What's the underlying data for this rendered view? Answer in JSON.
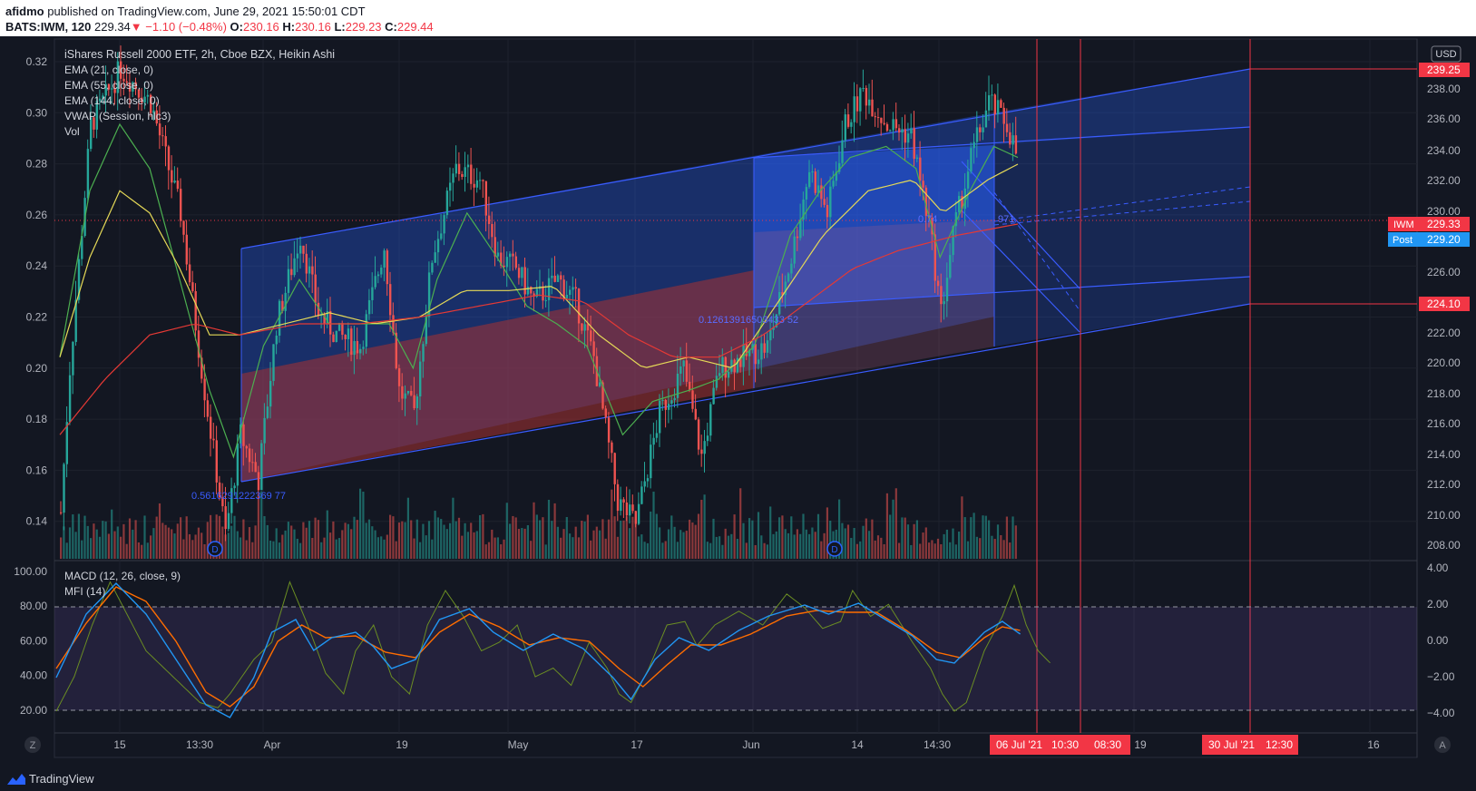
{
  "header": {
    "author": "afidmo",
    "published_text": " published on TradingView.com, June 29, 2021 15:50:01 CDT",
    "symbol": "BATS:IWM, 120",
    "last": "229.34",
    "change": "−1.10 (−0.48%)",
    "o_label": "O:",
    "o": "230.16",
    "h_label": "H:",
    "h": "230.16",
    "l_label": "L:",
    "l": "229.23",
    "c_label": "C:",
    "c": "229.44"
  },
  "legend": {
    "title": "iShares Russell 2000 ETF, 2h, Cboe BZX, Heikin Ashi",
    "ema21": "EMA (21, close, 0)",
    "ema55": "EMA (55, close, 0)",
    "ema144": "EMA (144, close, 0)",
    "vwap": "VWAP (Session, hlc3)",
    "vol": "Vol",
    "macd": "MACD (12, 26, close, 9)",
    "mfi": "MFI (14)"
  },
  "currency": "USD",
  "price_tags": {
    "top_line": "239.25",
    "iwm_label": "IWM",
    "iwm": "229.33",
    "post_label": "Post",
    "post": "229.20",
    "bottom_line": "224.10"
  },
  "fib_labels": {
    "a": "0.5616291222369 77",
    "b": "0.12613916503433 52",
    "c": "0.74",
    "c2": "971"
  },
  "dividend_marker": "D",
  "time_tags": {
    "t1": "06 Jul '21",
    "t2": "10:30",
    "t3": "08:30",
    "t4": "30 Jul '21",
    "t5": "12:30"
  },
  "corner": {
    "left": "Z",
    "right": "A"
  },
  "footer": {
    "brand": "TradingView"
  },
  "colors": {
    "bull": "#26a69a",
    "bear": "#ef5350",
    "channel": "#2962ff",
    "ema21": "#4caf50",
    "ema55": "#e5d957",
    "ema144": "#e53935",
    "macd": "#2196f3",
    "signal": "#ff6d00",
    "mfi": "#6b8e23",
    "vline": "#f23645"
  },
  "chart_data": {
    "type": "candlestick",
    "ylabel_right": "USD",
    "price_axis_ticks": [
      239.25,
      238.0,
      236.0,
      234.0,
      232.0,
      230.0,
      229.33,
      229.2,
      226.0,
      224.1,
      222.0,
      220.0,
      218.0,
      216.0,
      214.0,
      212.0,
      210.0,
      208.0
    ],
    "price_axis_labels": [
      "239.25",
      "238.00",
      "236.00",
      "234.00",
      "232.00",
      "230.00",
      "229.33",
      "229.20",
      "226.00",
      "224.10",
      "222.00",
      "220.00",
      "218.00",
      "216.00",
      "214.00",
      "212.00",
      "210.00",
      "208.00"
    ],
    "left_axis_labels": [
      "0.32",
      "0.30",
      "0.28",
      "0.26",
      "0.24",
      "0.22",
      "0.20",
      "0.18",
      "0.16",
      "0.14"
    ],
    "ylim_price": [
      206.9,
      241.4
    ],
    "x_tick_labels": [
      "15",
      "13:30",
      "Apr",
      "19",
      "May",
      "17",
      "Jun",
      "14",
      "14:30",
      "19",
      "16"
    ],
    "price_path_keypoints": [
      [
        0,
        213.5
      ],
      [
        3,
        220
      ],
      [
        10,
        231
      ],
      [
        20,
        233.5
      ],
      [
        30,
        232
      ],
      [
        40,
        227
      ],
      [
        48,
        219
      ],
      [
        55,
        212.5
      ],
      [
        60,
        217
      ],
      [
        66,
        215
      ],
      [
        72,
        222
      ],
      [
        80,
        226
      ],
      [
        86,
        222.5
      ],
      [
        92,
        221.5
      ],
      [
        100,
        221
      ],
      [
        108,
        225.5
      ],
      [
        113,
        219
      ],
      [
        118,
        218
      ],
      [
        124,
        225
      ],
      [
        132,
        229
      ],
      [
        140,
        228.5
      ],
      [
        146,
        225
      ],
      [
        152,
        224.5
      ],
      [
        158,
        223
      ],
      [
        166,
        224
      ],
      [
        172,
        223
      ],
      [
        178,
        220.5
      ],
      [
        186,
        214
      ],
      [
        192,
        213
      ],
      [
        200,
        218
      ],
      [
        208,
        220
      ],
      [
        214,
        216
      ],
      [
        220,
        220
      ],
      [
        228,
        220.5
      ],
      [
        236,
        221
      ],
      [
        244,
        225
      ],
      [
        250,
        229
      ],
      [
        256,
        227
      ],
      [
        262,
        231
      ],
      [
        268,
        232.5
      ],
      [
        276,
        231
      ],
      [
        284,
        230.5
      ],
      [
        290,
        226.5
      ],
      [
        294,
        222.5
      ],
      [
        298,
        226
      ],
      [
        304,
        229.5
      ],
      [
        310,
        232
      ],
      [
        316,
        231
      ],
      [
        320,
        229.3
      ]
    ],
    "ema21_keypoints": [
      [
        0,
        220.5
      ],
      [
        10,
        228
      ],
      [
        20,
        231
      ],
      [
        30,
        229
      ],
      [
        40,
        224
      ],
      [
        50,
        219
      ],
      [
        58,
        216
      ],
      [
        68,
        221
      ],
      [
        80,
        224
      ],
      [
        90,
        222
      ],
      [
        100,
        222
      ],
      [
        110,
        222
      ],
      [
        118,
        220
      ],
      [
        126,
        224
      ],
      [
        136,
        227
      ],
      [
        146,
        225
      ],
      [
        156,
        222.8
      ],
      [
        166,
        222
      ],
      [
        176,
        221
      ],
      [
        188,
        217
      ],
      [
        198,
        218.5
      ],
      [
        210,
        219
      ],
      [
        220,
        219.5
      ],
      [
        232,
        221
      ],
      [
        244,
        226
      ],
      [
        254,
        228
      ],
      [
        264,
        229.5
      ],
      [
        276,
        230
      ],
      [
        286,
        229
      ],
      [
        294,
        225
      ],
      [
        304,
        228
      ],
      [
        312,
        230
      ],
      [
        320,
        229.5
      ]
    ],
    "ema55_keypoints": [
      [
        0,
        220.5
      ],
      [
        10,
        225
      ],
      [
        20,
        228
      ],
      [
        30,
        227
      ],
      [
        40,
        224.5
      ],
      [
        50,
        221.5
      ],
      [
        60,
        221.5
      ],
      [
        75,
        222
      ],
      [
        90,
        222.5
      ],
      [
        105,
        222
      ],
      [
        120,
        222.3
      ],
      [
        135,
        223.5
      ],
      [
        150,
        223.5
      ],
      [
        165,
        223.7
      ],
      [
        180,
        221.5
      ],
      [
        195,
        220
      ],
      [
        210,
        220.5
      ],
      [
        225,
        220
      ],
      [
        240,
        223
      ],
      [
        255,
        226
      ],
      [
        270,
        228
      ],
      [
        285,
        228.5
      ],
      [
        295,
        227
      ],
      [
        310,
        228.5
      ],
      [
        320,
        229.2
      ]
    ],
    "ema144_keypoints": [
      [
        0,
        217
      ],
      [
        15,
        219.5
      ],
      [
        30,
        221.5
      ],
      [
        45,
        222
      ],
      [
        60,
        221.5
      ],
      [
        80,
        222
      ],
      [
        100,
        222
      ],
      [
        120,
        222.3
      ],
      [
        140,
        222.8
      ],
      [
        160,
        223.3
      ],
      [
        175,
        223
      ],
      [
        190,
        221.5
      ],
      [
        205,
        220.5
      ],
      [
        220,
        220.5
      ],
      [
        235,
        221.5
      ],
      [
        250,
        223
      ],
      [
        265,
        224.5
      ],
      [
        280,
        225.3
      ],
      [
        300,
        226
      ],
      [
        320,
        226.5
      ]
    ],
    "volume_bars": 320,
    "macd_axis_labels": [
      "4.00",
      "2.00",
      "0.00",
      "−2.00",
      "−4.00"
    ],
    "mfi_axis_labels": [
      "100.00",
      "80.00",
      "60.00",
      "40.00",
      "20.00"
    ],
    "macd_keypoints": [
      [
        0,
        -2
      ],
      [
        10,
        1.5
      ],
      [
        20,
        3.2
      ],
      [
        30,
        1.5
      ],
      [
        40,
        -1
      ],
      [
        50,
        -3.5
      ],
      [
        58,
        -4.2
      ],
      [
        66,
        -2
      ],
      [
        72,
        0.5
      ],
      [
        80,
        1.2
      ],
      [
        86,
        -0.5
      ],
      [
        92,
        0.2
      ],
      [
        100,
        0.5
      ],
      [
        106,
        -0.3
      ],
      [
        112,
        -1.5
      ],
      [
        120,
        -1
      ],
      [
        128,
        1.2
      ],
      [
        138,
        1.8
      ],
      [
        146,
        0.5
      ],
      [
        156,
        -0.5
      ],
      [
        166,
        0.4
      ],
      [
        176,
        -0.4
      ],
      [
        186,
        -2
      ],
      [
        192,
        -3.2
      ],
      [
        200,
        -1
      ],
      [
        208,
        0.2
      ],
      [
        218,
        -0.5
      ],
      [
        228,
        0.6
      ],
      [
        238,
        1.4
      ],
      [
        250,
        2
      ],
      [
        258,
        1.5
      ],
      [
        268,
        2.1
      ],
      [
        276,
        1.3
      ],
      [
        286,
        0.3
      ],
      [
        294,
        -1
      ],
      [
        300,
        -1.2
      ],
      [
        310,
        0.5
      ],
      [
        316,
        1.1
      ],
      [
        322,
        0.4
      ]
    ],
    "signal_keypoints": [
      [
        0,
        -1.5
      ],
      [
        10,
        1
      ],
      [
        20,
        3
      ],
      [
        30,
        2.2
      ],
      [
        40,
        0
      ],
      [
        50,
        -2.8
      ],
      [
        58,
        -3.6
      ],
      [
        66,
        -2.5
      ],
      [
        74,
        0
      ],
      [
        82,
        0.9
      ],
      [
        90,
        0.2
      ],
      [
        100,
        0.3
      ],
      [
        110,
        -0.6
      ],
      [
        120,
        -0.9
      ],
      [
        128,
        0.5
      ],
      [
        138,
        1.5
      ],
      [
        148,
        0.8
      ],
      [
        158,
        -0.2
      ],
      [
        168,
        0.2
      ],
      [
        178,
        0
      ],
      [
        188,
        -1.5
      ],
      [
        196,
        -2.5
      ],
      [
        204,
        -1.3
      ],
      [
        212,
        -0.2
      ],
      [
        222,
        -0.2
      ],
      [
        232,
        0.4
      ],
      [
        244,
        1.4
      ],
      [
        254,
        1.7
      ],
      [
        264,
        1.6
      ],
      [
        274,
        1.6
      ],
      [
        284,
        0.6
      ],
      [
        294,
        -0.6
      ],
      [
        302,
        -0.9
      ],
      [
        310,
        0.2
      ],
      [
        316,
        0.8
      ],
      [
        322,
        0.6
      ]
    ],
    "mfi_keypoints": [
      [
        0,
        20
      ],
      [
        6,
        40
      ],
      [
        12,
        70
      ],
      [
        18,
        95
      ],
      [
        24,
        75
      ],
      [
        30,
        55
      ],
      [
        36,
        45
      ],
      [
        42,
        35
      ],
      [
        48,
        25
      ],
      [
        54,
        22
      ],
      [
        58,
        30
      ],
      [
        66,
        50
      ],
      [
        72,
        60
      ],
      [
        78,
        95
      ],
      [
        84,
        70
      ],
      [
        90,
        42
      ],
      [
        96,
        30
      ],
      [
        100,
        55
      ],
      [
        106,
        70
      ],
      [
        112,
        40
      ],
      [
        118,
        30
      ],
      [
        124,
        70
      ],
      [
        130,
        90
      ],
      [
        136,
        75
      ],
      [
        142,
        55
      ],
      [
        148,
        60
      ],
      [
        154,
        70
      ],
      [
        160,
        40
      ],
      [
        166,
        45
      ],
      [
        172,
        35
      ],
      [
        178,
        60
      ],
      [
        184,
        45
      ],
      [
        188,
        30
      ],
      [
        192,
        25
      ],
      [
        198,
        45
      ],
      [
        204,
        70
      ],
      [
        210,
        72
      ],
      [
        214,
        58
      ],
      [
        220,
        70
      ],
      [
        228,
        78
      ],
      [
        236,
        70
      ],
      [
        244,
        88
      ],
      [
        250,
        80
      ],
      [
        256,
        68
      ],
      [
        262,
        72
      ],
      [
        266,
        90
      ],
      [
        272,
        75
      ],
      [
        278,
        82
      ],
      [
        286,
        60
      ],
      [
        292,
        45
      ],
      [
        296,
        30
      ],
      [
        300,
        20
      ],
      [
        304,
        25
      ],
      [
        310,
        55
      ],
      [
        316,
        75
      ],
      [
        320,
        93
      ],
      [
        324,
        70
      ],
      [
        328,
        55
      ],
      [
        332,
        48
      ]
    ]
  }
}
